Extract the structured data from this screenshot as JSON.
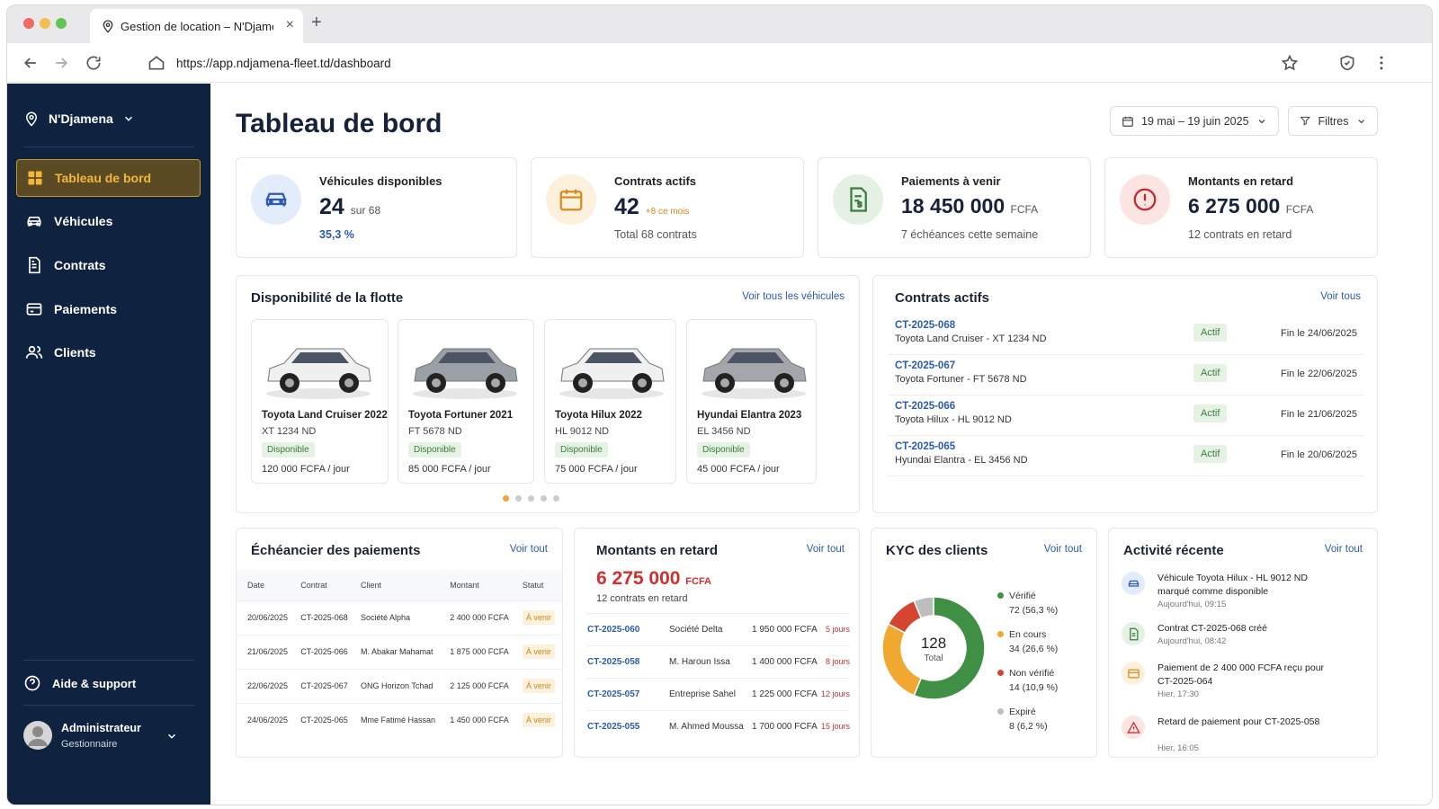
{
  "browser": {
    "tab_title": "Gestion de location – N'Djamena",
    "url": "https://app.ndjamena-fleet.td/dashboard"
  },
  "sidebar": {
    "location": "N'Djamena",
    "items": [
      {
        "label": "Tableau de bord",
        "icon": "grid-icon",
        "active": true
      },
      {
        "label": "Véhicules",
        "icon": "car-icon"
      },
      {
        "label": "Contrats",
        "icon": "document-icon"
      },
      {
        "label": "Paiements",
        "icon": "credit-card-icon"
      },
      {
        "label": "Clients",
        "icon": "users-icon"
      }
    ],
    "help": "Aide & support",
    "user_name": "Administrateur",
    "user_role": "Gestionnaire"
  },
  "header": {
    "title": "Tableau de bord",
    "date_range": "19 mai – 19 juin 2025",
    "filters": "Filtres"
  },
  "kpis": [
    {
      "label": "Véhicules disponibles",
      "value": "24",
      "suffix": "sur 68",
      "sub": "35,3 %",
      "color": "#2a5bb0"
    },
    {
      "label": "Contrats actifs",
      "value": "42",
      "suffix": "+8 ce mois",
      "sub": "Total 68 contrats",
      "color": "#d88a1e"
    },
    {
      "label": "Paiements à venir",
      "value": "18 450 000",
      "suffix": "FCFA",
      "sub": "7 échéances cette semaine",
      "color": "#3a7d3f"
    },
    {
      "label": "Montants en retard",
      "value": "6 275 000",
      "suffix": "FCFA",
      "sub": "12 contrats en retard",
      "color": "#c62828"
    }
  ],
  "fleet": {
    "title": "Disponibilité de la flotte",
    "link": "Voir tous les véhicules",
    "vehicles": [
      {
        "name": "Toyota Land Cruiser 2022",
        "plate": "XT 1234 ND",
        "status": "Disponible",
        "price": "120 000 FCFA / jour",
        "color": "#f0f0f0"
      },
      {
        "name": "Toyota Fortuner 2021",
        "plate": "FT 5678 ND",
        "status": "Disponible",
        "price": "85 000 FCFA / jour",
        "color": "#9aa0a6"
      },
      {
        "name": "Toyota Hilux 2022",
        "plate": "HL 9012 ND",
        "status": "Disponible",
        "price": "75 000 FCFA / jour",
        "color": "#f0f0f0"
      },
      {
        "name": "Hyundai Elantra 2023",
        "plate": "EL 3456 ND",
        "status": "Disponible",
        "price": "45 000 FCFA / jour",
        "color": "#a3a7ab"
      }
    ]
  },
  "contracts": {
    "title": "Contrats actifs",
    "link": "Voir tous",
    "rows": [
      {
        "id": "CT-2025-068",
        "desc": "Toyota Land Cruiser - XT 1234 ND",
        "status": "Actif",
        "end": "Fin le 24/06/2025"
      },
      {
        "id": "CT-2025-067",
        "desc": "Toyota Fortuner - FT 5678 ND",
        "status": "Actif",
        "end": "Fin le 22/06/2025"
      },
      {
        "id": "CT-2025-066",
        "desc": "Toyota Hilux - HL 9012 ND",
        "status": "Actif",
        "end": "Fin le 21/06/2025"
      },
      {
        "id": "CT-2025-065",
        "desc": "Hyundai Elantra - EL 3456 ND",
        "status": "Actif",
        "end": "Fin le 20/06/2025"
      }
    ]
  },
  "schedule": {
    "title": "Échéancier des paiements",
    "link": "Voir tout",
    "columns": [
      "Date",
      "Contrat",
      "Client",
      "Montant",
      "Statut"
    ],
    "rows": [
      [
        "20/06/2025",
        "CT-2025-068",
        "Société Alpha",
        "2 400 000 FCFA",
        "À venir"
      ],
      [
        "21/06/2025",
        "CT-2025-066",
        "M. Abakar Mahamat",
        "1 875 000 FCFA",
        "À venir"
      ],
      [
        "22/06/2025",
        "CT-2025-067",
        "ONG Horizon Tchad",
        "2 125 000 FCFA",
        "À venir"
      ],
      [
        "24/06/2025",
        "CT-2025-065",
        "Mme Fatimé Hassan",
        "1 450 000 FCFA",
        "À venir"
      ]
    ]
  },
  "late": {
    "title": "Montants en retard",
    "link": "Voir tout",
    "amount": "6 275 000",
    "currency": "FCFA",
    "sub": "12 contrats en retard",
    "rows": [
      {
        "id": "CT-2025-060",
        "client": "Société Delta",
        "amount": "1 950 000 FCFA",
        "days": "5 jours"
      },
      {
        "id": "CT-2025-058",
        "client": "M. Haroun Issa",
        "amount": "1 400 000 FCFA",
        "days": "8 jours"
      },
      {
        "id": "CT-2025-057",
        "client": "Entreprise Sahel",
        "amount": "1 225 000 FCFA",
        "days": "12 jours"
      },
      {
        "id": "CT-2025-055",
        "client": "M. Ahmed Moussa",
        "amount": "1 700 000 FCFA",
        "days": "15 jours"
      }
    ]
  },
  "kyc": {
    "title": "KYC des clients",
    "link": "Voir tout",
    "total": "128",
    "total_label": "Total",
    "segments": [
      {
        "label": "Vérifié",
        "detail": "72 (56,3 %)",
        "value": 72,
        "color": "#3f8f45"
      },
      {
        "label": "En cours",
        "detail": "34 (26,6 %)",
        "value": 34,
        "color": "#f0a830"
      },
      {
        "label": "Non vérifié",
        "detail": "14 (10,9 %)",
        "value": 14,
        "color": "#d6452f"
      },
      {
        "label": "Expiré",
        "detail": "8 (6,2 %)",
        "value": 8,
        "color": "#bdbdbd"
      }
    ]
  },
  "activity": {
    "title": "Activité récente",
    "link": "Voir tout",
    "items": [
      {
        "text": "Véhicule Toyota Hilux - HL 9012 ND marqué comme disponible",
        "time": "Aujourd'hui, 09:15",
        "icon": "car-icon",
        "color": "#2a5bb0"
      },
      {
        "text": "Contrat CT-2025-068 créé",
        "time": "Aujourd'hui, 08:42",
        "icon": "document-icon",
        "color": "#3a7d3f"
      },
      {
        "text": "Paiement de 2 400 000 FCFA reçu pour CT-2025-064",
        "time": "Hier, 17:30",
        "icon": "credit-card-icon",
        "color": "#d88a1e"
      },
      {
        "text": "Retard de paiement pour CT-2025-058",
        "time": "Hier, 16:05",
        "icon": "warning-icon",
        "color": "#c62828"
      }
    ]
  }
}
